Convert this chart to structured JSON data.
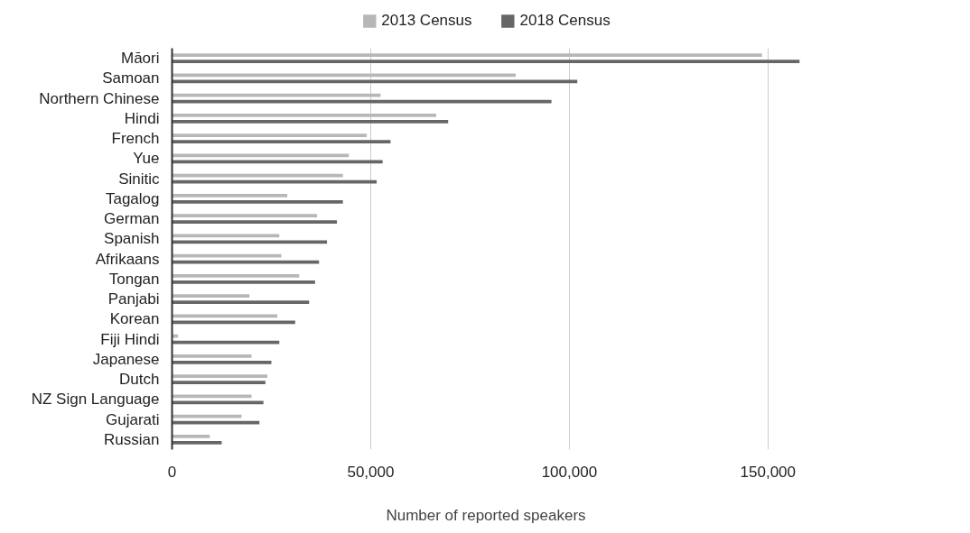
{
  "chart_data": {
    "type": "bar",
    "orientation": "horizontal",
    "categories": [
      "Māori",
      "Samoan",
      "Northern Chinese",
      "Hindi",
      "French",
      "Yue",
      "Sinitic",
      "Tagalog",
      "German",
      "Spanish",
      "Afrikaans",
      "Tongan",
      "Panjabi",
      "Korean",
      "Fiji Hindi",
      "Japanese",
      "Dutch",
      "NZ Sign Language",
      "Gujarati",
      "Russian"
    ],
    "series": [
      {
        "name": "2013 Census",
        "color": "#b7b7b7",
        "values": [
          148500,
          86500,
          52500,
          66500,
          49000,
          44500,
          43000,
          29000,
          36500,
          27000,
          27500,
          32000,
          19500,
          26500,
          1500,
          20000,
          24000,
          20000,
          17500,
          9500
        ]
      },
      {
        "name": "2018 Census",
        "color": "#666666",
        "values": [
          158000,
          102000,
          95500,
          69500,
          55000,
          53000,
          51500,
          43000,
          41500,
          39000,
          37000,
          36000,
          34500,
          31000,
          27000,
          25000,
          23500,
          23000,
          22000,
          12500
        ]
      }
    ],
    "xlabel": "Number of reported speakers",
    "xlim": [
      0,
      158000
    ],
    "xticks": [
      {
        "value": 0,
        "label": "0"
      },
      {
        "value": 50000,
        "label": "50,000"
      },
      {
        "value": 100000,
        "label": "100,000"
      },
      {
        "value": 150000,
        "label": "150,000"
      }
    ],
    "grid": "x",
    "legend": "top"
  }
}
